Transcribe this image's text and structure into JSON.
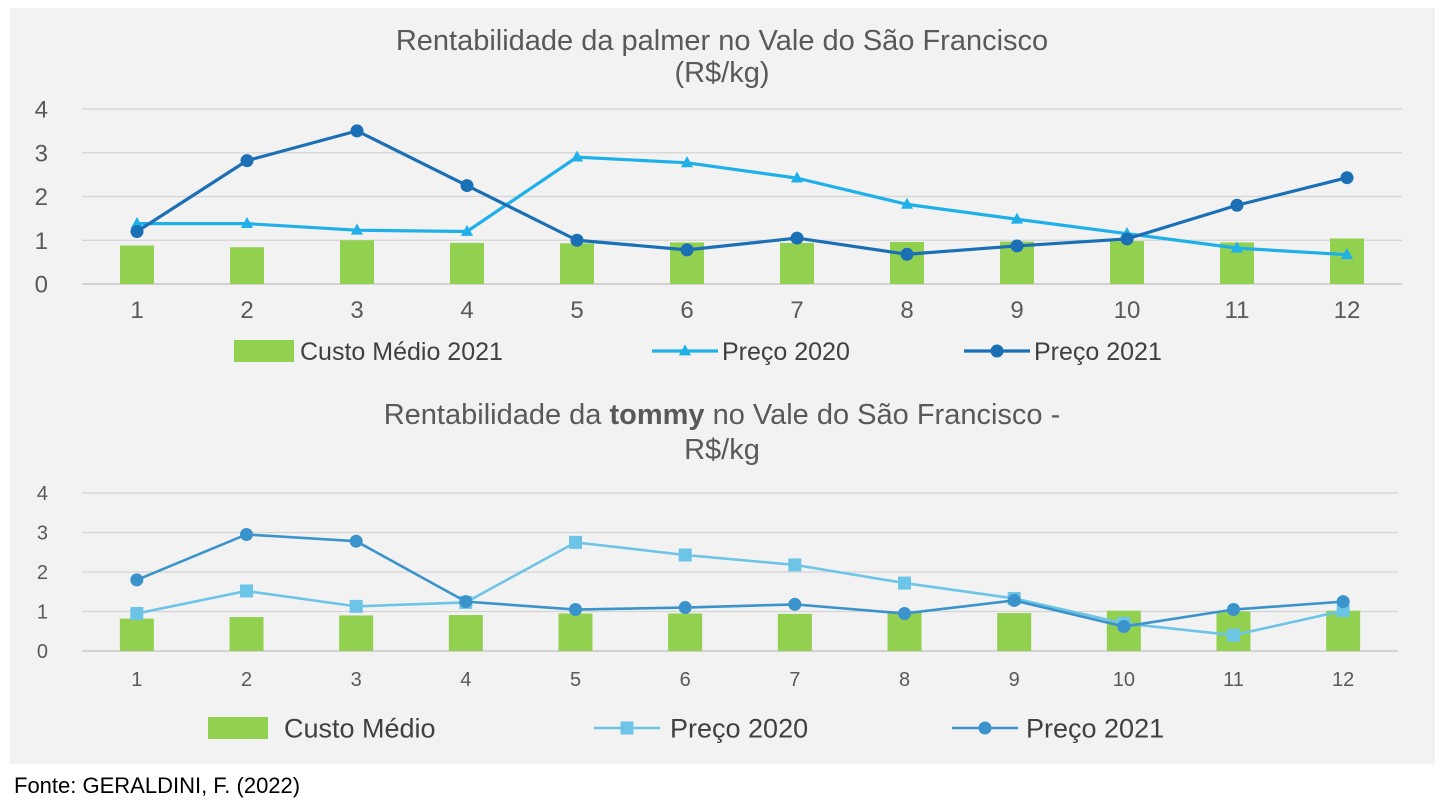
{
  "chart_data": [
    {
      "type": "bar+line",
      "title_line1": "Rentabilidade da palmer no Vale do São Francisco",
      "title_line2": "(R$/kg)",
      "categories": [
        "1",
        "2",
        "3",
        "4",
        "5",
        "6",
        "7",
        "8",
        "9",
        "10",
        "11",
        "12"
      ],
      "y_ticks": [
        "0",
        "1",
        "2",
        "3",
        "4"
      ],
      "ylim": [
        0,
        4
      ],
      "grid": true,
      "legend_position": "bottom",
      "series": [
        {
          "name": "Custo Médio 2021",
          "kind": "bar",
          "color": "#92d050",
          "values": [
            0.88,
            0.84,
            1.0,
            0.94,
            0.93,
            0.95,
            0.94,
            0.96,
            0.97,
            0.98,
            0.95,
            1.04
          ]
        },
        {
          "name": "Preço 2020",
          "kind": "line",
          "marker": "triangle",
          "color": "#1fb0ea",
          "values": [
            1.38,
            1.38,
            1.23,
            1.2,
            2.9,
            2.77,
            2.42,
            1.82,
            1.48,
            1.15,
            0.82,
            0.67
          ]
        },
        {
          "name": "Preço 2021",
          "kind": "line",
          "marker": "circle",
          "color": "#1a6fb5",
          "values": [
            1.2,
            2.82,
            3.5,
            2.25,
            1.0,
            0.78,
            1.05,
            0.68,
            0.87,
            1.03,
            1.8,
            2.43
          ]
        }
      ]
    },
    {
      "type": "bar+line",
      "title_prefix": "Rentabilidade da ",
      "title_bold": "tommy",
      "title_suffix": " no Vale do São Francisco -",
      "title_line2": "R$/kg",
      "categories": [
        "1",
        "2",
        "3",
        "4",
        "5",
        "6",
        "7",
        "8",
        "9",
        "10",
        "11",
        "12"
      ],
      "y_ticks": [
        "0",
        "1",
        "2",
        "3",
        "4"
      ],
      "ylim": [
        0,
        4
      ],
      "grid": true,
      "legend_position": "bottom",
      "series": [
        {
          "name": "Custo Médio",
          "kind": "bar",
          "color": "#92d050",
          "values": [
            0.82,
            0.86,
            0.9,
            0.91,
            0.95,
            0.95,
            0.94,
            0.97,
            0.96,
            1.02,
            1.0,
            1.02
          ]
        },
        {
          "name": "Preço 2020",
          "kind": "line",
          "marker": "square",
          "color": "#6cc4e6",
          "values": [
            0.95,
            1.52,
            1.13,
            1.23,
            2.75,
            2.43,
            2.18,
            1.72,
            1.33,
            0.7,
            0.4,
            1.02
          ]
        },
        {
          "name": "Preço 2021",
          "kind": "line",
          "marker": "circle",
          "color": "#3b93cc",
          "values": [
            1.8,
            2.95,
            2.78,
            1.25,
            1.05,
            1.1,
            1.18,
            0.95,
            1.28,
            0.62,
            1.05,
            1.25
          ]
        }
      ]
    }
  ],
  "source": "Fonte: GERALDINI, F. (2022)"
}
